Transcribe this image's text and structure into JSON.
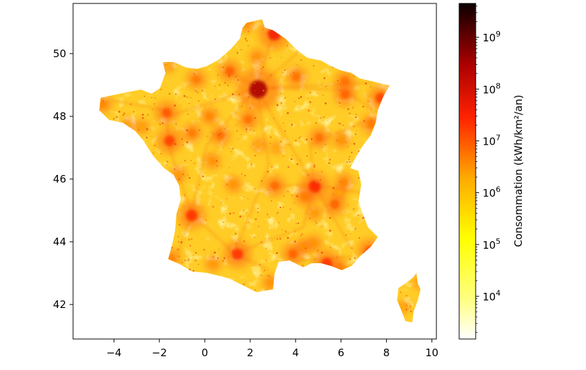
{
  "chart_data": {
    "type": "heatmap",
    "title": "",
    "xlabel": "",
    "ylabel": "",
    "xlim": [
      -5.8,
      10.2
    ],
    "ylim": [
      40.9,
      51.6
    ],
    "x_ticks": [
      "−4",
      "−2",
      "0",
      "2",
      "4",
      "6",
      "8",
      "10"
    ],
    "x_tick_values": [
      -4,
      -2,
      0,
      2,
      4,
      6,
      8,
      10
    ],
    "y_ticks": [
      "42",
      "44",
      "46",
      "48",
      "50"
    ],
    "y_tick_values": [
      42,
      44,
      46,
      48,
      50
    ],
    "colormap": "hot_r",
    "colorbar": {
      "label": "Consommation (kWh/km²/an)",
      "scale": "log",
      "range": [
        1500,
        4500000000
      ],
      "ticks": [
        {
          "value": 10000,
          "base": "10",
          "exp": "4"
        },
        {
          "value": 100000,
          "base": "10",
          "exp": "5"
        },
        {
          "value": 1000000,
          "base": "10",
          "exp": "6"
        },
        {
          "value": 10000000,
          "base": "10",
          "exp": "7"
        },
        {
          "value": 100000000,
          "base": "10",
          "exp": "8"
        },
        {
          "value": 1000000000,
          "base": "10",
          "exp": "9"
        }
      ]
    },
    "hotspots": [
      {
        "lon": 2.35,
        "lat": 48.86,
        "value": 300000000
      },
      {
        "lon": 4.84,
        "lat": 45.76,
        "value": 30000000
      },
      {
        "lon": 1.44,
        "lat": 43.6,
        "value": 20000000
      },
      {
        "lon": -0.58,
        "lat": 44.84,
        "value": 20000000
      },
      {
        "lon": 3.06,
        "lat": 50.63,
        "value": 40000000
      },
      {
        "lon": 5.37,
        "lat": 43.3,
        "value": 20000000
      },
      {
        "lon": -1.55,
        "lat": 47.22,
        "value": 15000000
      },
      {
        "lon": 7.75,
        "lat": 48.58,
        "value": 15000000
      },
      {
        "lon": -1.68,
        "lat": 48.11,
        "value": 10000000
      },
      {
        "lon": 7.26,
        "lat": 43.7,
        "value": 12000000
      },
      {
        "lon": 1.1,
        "lat": 49.44,
        "value": 8000000
      },
      {
        "lon": 3.88,
        "lat": 43.61,
        "value": 8000000
      },
      {
        "lon": 5.72,
        "lat": 45.19,
        "value": 8000000
      },
      {
        "lon": 6.18,
        "lat": 48.69,
        "value": 8000000
      },
      {
        "lon": 0.69,
        "lat": 47.39,
        "value": 6000000
      },
      {
        "lon": 1.91,
        "lat": 47.9,
        "value": 6000000
      },
      {
        "lon": 3.08,
        "lat": 45.78,
        "value": 7000000
      },
      {
        "lon": 5.04,
        "lat": 47.32,
        "value": 6000000
      },
      {
        "lon": 4.03,
        "lat": 49.26,
        "value": 6000000
      },
      {
        "lon": -0.37,
        "lat": 49.18,
        "value": 5000000
      },
      {
        "lon": 0.2,
        "lat": 48.0,
        "value": 4000000
      },
      {
        "lon": -0.56,
        "lat": 47.47,
        "value": 5000000
      },
      {
        "lon": 0.34,
        "lat": 46.58,
        "value": 3000000
      },
      {
        "lon": 1.26,
        "lat": 45.83,
        "value": 3000000
      },
      {
        "lon": 6.02,
        "lat": 47.24,
        "value": 3000000
      },
      {
        "lon": 6.17,
        "lat": 49.12,
        "value": 6000000
      },
      {
        "lon": 7.33,
        "lat": 47.75,
        "value": 5000000
      },
      {
        "lon": -4.49,
        "lat": 48.39,
        "value": 4000000
      },
      {
        "lon": 2.3,
        "lat": 49.89,
        "value": 3000000
      },
      {
        "lon": 4.4,
        "lat": 45.44,
        "value": 5000000
      },
      {
        "lon": 5.93,
        "lat": 43.12,
        "value": 5000000
      },
      {
        "lon": -1.47,
        "lat": 43.48,
        "value": 4000000
      },
      {
        "lon": 0.37,
        "lat": 43.3,
        "value": 2500000
      },
      {
        "lon": 2.9,
        "lat": 42.69,
        "value": 3000000
      },
      {
        "lon": 4.36,
        "lat": 43.84,
        "value": 3000000
      },
      {
        "lon": 4.81,
        "lat": 43.95,
        "value": 3000000
      },
      {
        "lon": 3.7,
        "lat": 51.03,
        "value": 4000000
      },
      {
        "lon": 1.85,
        "lat": 50.95,
        "value": 3000000
      },
      {
        "lon": -1.62,
        "lat": 49.63,
        "value": 2000000
      },
      {
        "lon": -2.76,
        "lat": 47.66,
        "value": 2000000
      },
      {
        "lon": -3.36,
        "lat": 47.75,
        "value": 2000000
      },
      {
        "lon": -1.15,
        "lat": 46.16,
        "value": 2500000
      },
      {
        "lon": 2.4,
        "lat": 47.08,
        "value": 2000000
      },
      {
        "lon": 3.16,
        "lat": 46.99,
        "value": 1500000
      },
      {
        "lon": 6.13,
        "lat": 45.9,
        "value": 4000000
      },
      {
        "lon": 5.92,
        "lat": 45.57,
        "value": 2000000
      },
      {
        "lon": 4.83,
        "lat": 44.93,
        "value": 2500000
      },
      {
        "lon": 8.74,
        "lat": 41.92,
        "value": 1500000
      },
      {
        "lon": 9.45,
        "lat": 42.7,
        "value": 1500000
      }
    ]
  }
}
